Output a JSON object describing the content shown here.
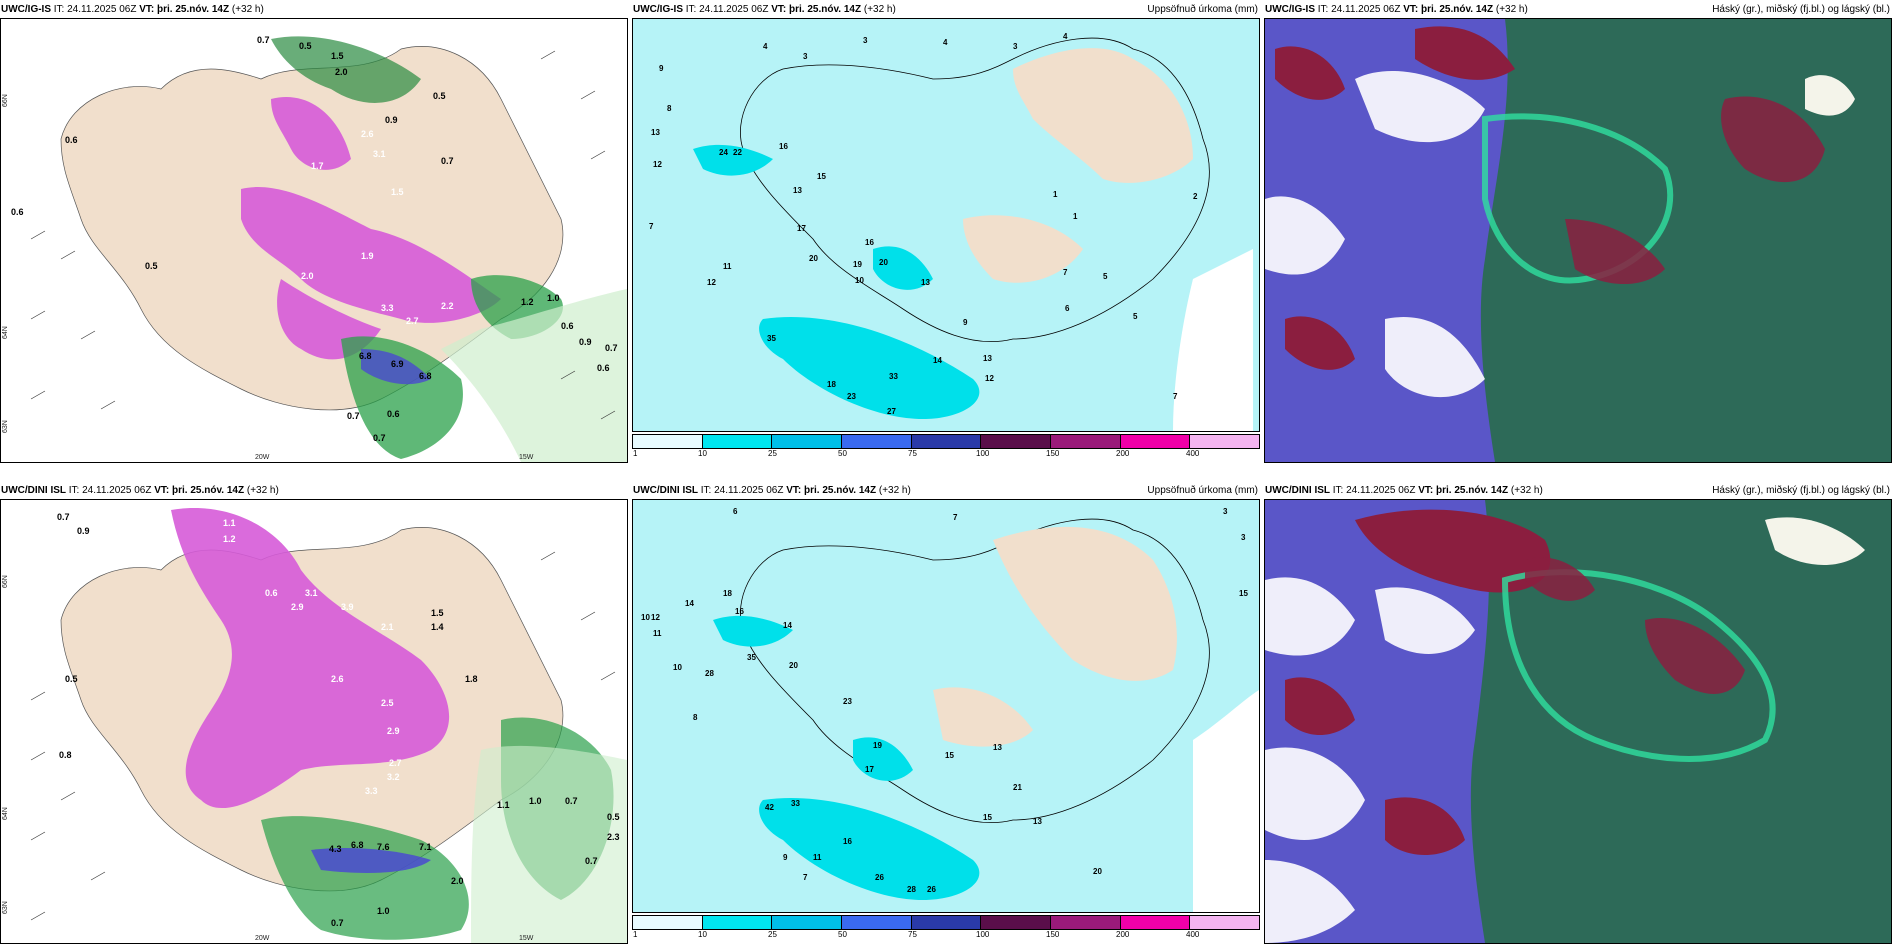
{
  "panels": [
    {
      "model": "UWC/IG-IS",
      "it_label": "IT:",
      "it": "24.11.2025 06Z",
      "vt_label": "VT:",
      "vt": "þri. 25.nóv. 14Z",
      "lead": "(+32 h)",
      "field": ""
    },
    {
      "model": "UWC/IG-IS",
      "it_label": "IT:",
      "it": "24.11.2025 06Z",
      "vt_label": "VT:",
      "vt": "þri. 25.nóv. 14Z",
      "lead": "(+32 h)",
      "field": "Uppsöfnuð úrkoma (mm)"
    },
    {
      "model": "UWC/IG-IS",
      "it_label": "IT:",
      "it": "24.11.2025 06Z",
      "vt_label": "VT:",
      "vt": "þri. 25.nóv. 14Z",
      "lead": "(+32 h)",
      "field": "Háský (gr.), miðský (fj.bl.) og lágský (bl.)"
    },
    {
      "model": "UWC/DINI ISL",
      "it_label": "IT:",
      "it": "24.11.2025 06Z",
      "vt_label": "VT:",
      "vt": "þri. 25.nóv. 14Z",
      "lead": "(+32 h)",
      "field": ""
    },
    {
      "model": "UWC/DINI ISL",
      "it_label": "IT:",
      "it": "24.11.2025 06Z",
      "vt_label": "VT:",
      "vt": "þri. 25.nóv. 14Z",
      "lead": "(+32 h)",
      "field": "Uppsöfnuð úrkoma (mm)"
    },
    {
      "model": "UWC/DINI ISL",
      "it_label": "IT:",
      "it": "24.11.2025 06Z",
      "vt_label": "VT:",
      "vt": "þri. 25.nóv. 14Z",
      "lead": "(+32 h)",
      "field": "Háský (gr.), miðský (fj.bl.) og lágský (bl.)"
    }
  ],
  "axis_labels": {
    "lat_66": "66N",
    "lat_64": "64N",
    "lat_63": "63N",
    "lon_20": "20W",
    "lon_15": "15W"
  },
  "colorbar": {
    "ticks": [
      "1",
      "10",
      "25",
      "50",
      "75",
      "100",
      "150",
      "200",
      "400"
    ],
    "colors": [
      "#e8fbff",
      "#00e6f0",
      "#00bfe8",
      "#3a6af0",
      "#2a3aa8",
      "#5a0e4a",
      "#9a1a7a",
      "#f000a8",
      "#f4b4f0"
    ]
  },
  "colors": {
    "land": "#f1dfcc",
    "precip_light": "#b6f3f7",
    "precip_mid": "#00e0ea",
    "snow_magenta": "#d65bd8",
    "rain_green": "#2aa04a",
    "cloud_high": "#2d6a58",
    "cloud_mid": "#5a56c8",
    "cloud_low": "#8b1e3f"
  },
  "values": {
    "top_left": [
      "0.7",
      "0.5",
      "1.5",
      "2.0",
      "0.5",
      "0.6",
      "0.9",
      "3.1",
      "2.6",
      "1.7",
      "1.5",
      "0.7",
      "0.6",
      "0.5",
      "1.9",
      "2.0",
      "3.3",
      "2.2",
      "2.7",
      "6.8",
      "6.9",
      "6.8",
      "0.7",
      "0.6",
      "0.7",
      "1.2",
      "1.0",
      "0.6",
      "0.7",
      "0.6",
      "0.9"
    ],
    "top_mid": [
      "4",
      "3",
      "3",
      "4",
      "4",
      "3",
      "9",
      "8",
      "7",
      "13",
      "12",
      "24",
      "22",
      "16",
      "13",
      "15",
      "17",
      "12",
      "11",
      "10",
      "20",
      "20",
      "16",
      "19",
      "13",
      "35",
      "18",
      "23",
      "27",
      "33",
      "14",
      "13",
      "9",
      "12",
      "7",
      "5",
      "6",
      "5",
      "7",
      "2",
      "1",
      "1"
    ],
    "bottom_left": [
      "0.7",
      "0.9",
      "1.1",
      "1.2",
      "0.5",
      "0.6",
      "2.9",
      "3.1",
      "3.9",
      "2.1",
      "1.8",
      "1.4",
      "1.5",
      "2.6",
      "2.5",
      "2.7",
      "2.9",
      "3.2",
      "3.3",
      "4.3",
      "6.8",
      "7.6",
      "7.1",
      "2.0",
      "0.7",
      "1.0",
      "1.1",
      "1.0",
      "0.7",
      "0.5",
      "2.3",
      "0.7",
      "0.8"
    ],
    "bottom_mid": [
      "6",
      "7",
      "3",
      "3",
      "15",
      "10",
      "12",
      "11",
      "14",
      "18",
      "16",
      "14",
      "35",
      "28",
      "20",
      "23",
      "19",
      "17",
      "15",
      "13",
      "42",
      "33",
      "16",
      "21",
      "15",
      "26",
      "28",
      "26",
      "20",
      "13",
      "10",
      "8",
      "9",
      "11",
      "7"
    ]
  }
}
